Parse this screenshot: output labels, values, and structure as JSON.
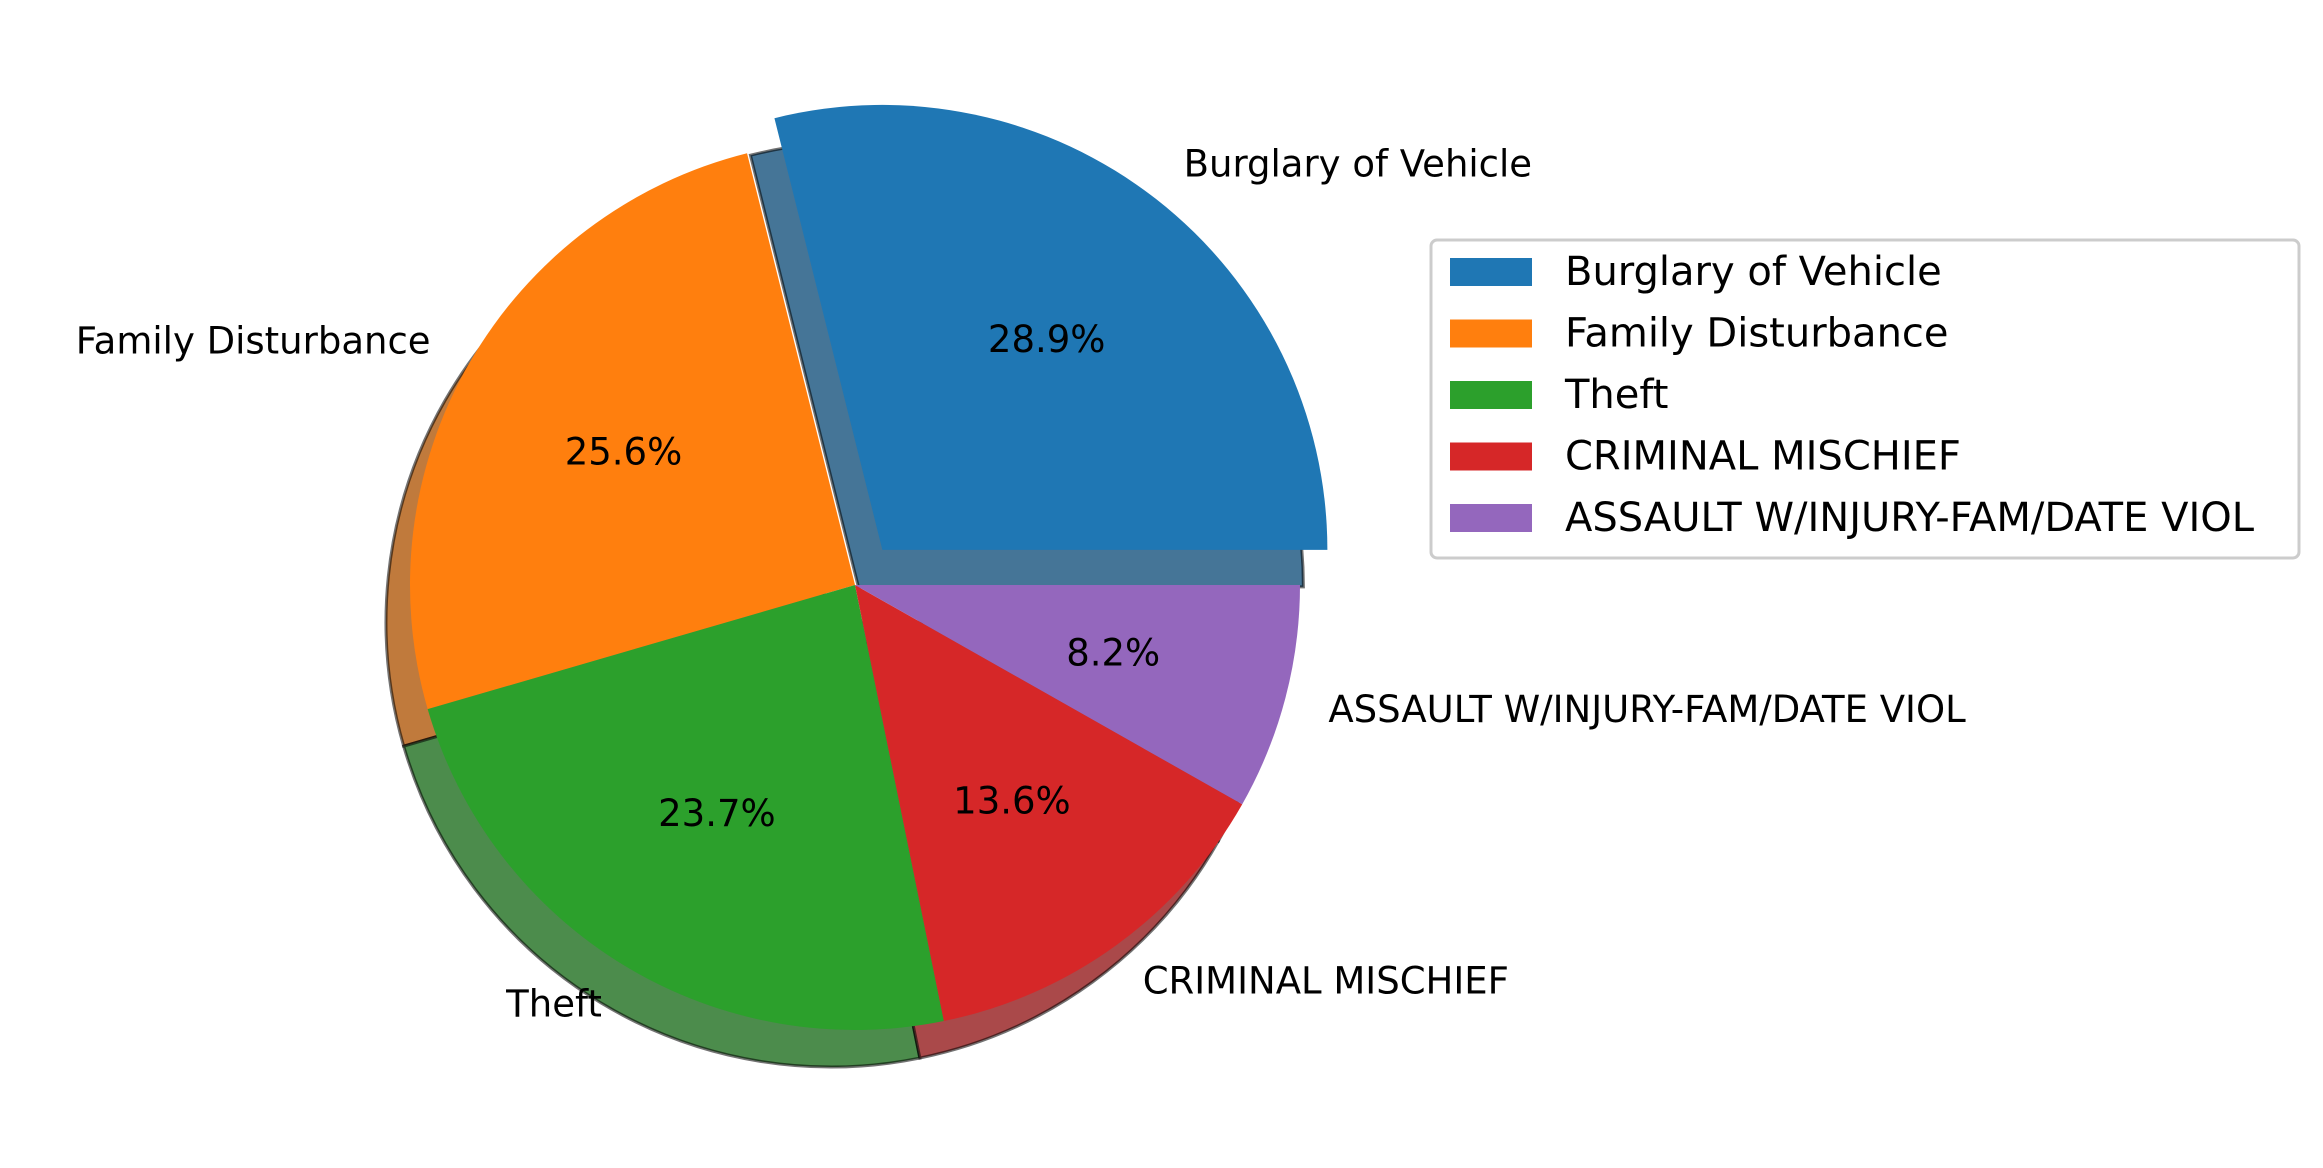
{
  "chart_data": {
    "type": "pie",
    "title": "",
    "categories": [
      "Burglary of Vehicle",
      "Family Disturbance",
      "Theft",
      "CRIMINAL MISCHIEF",
      "ASSAULT W/INJURY-FAM/DATE VIOL"
    ],
    "values": [
      28.9,
      25.6,
      23.7,
      13.6,
      8.2
    ],
    "percent_labels": [
      "28.9%",
      "25.6%",
      "23.7%",
      "13.6%",
      "8.2%"
    ],
    "colors": [
      "#1f77b4",
      "#ff7f0e",
      "#2ca02c",
      "#d62728",
      "#9467bd"
    ],
    "explode": [
      0.1,
      0,
      0,
      0,
      0
    ],
    "shadow": true,
    "start_angle_deg": 0,
    "direction": "counterclockwise",
    "legend": {
      "placement": "right",
      "entries": [
        "Burglary of Vehicle",
        "Family Disturbance",
        "Theft",
        "CRIMINAL MISCHIEF",
        "ASSAULT W/INJURY-FAM/DATE VIOL"
      ]
    }
  }
}
